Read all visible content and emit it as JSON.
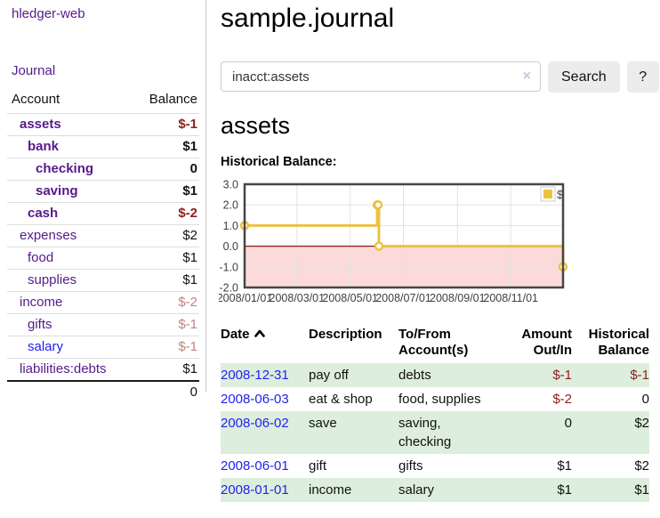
{
  "sidebar": {
    "app_title": "hledger-web",
    "nav": {
      "journal": "Journal"
    },
    "accounts": {
      "headers": {
        "account": "Account",
        "balance": "Balance"
      },
      "rows": [
        {
          "name": "assets",
          "depth": 0,
          "balance": "$-1",
          "in_account": true,
          "balance_style": "neg-strong",
          "link_style": "purple"
        },
        {
          "name": "bank",
          "depth": 1,
          "balance": "$1",
          "in_account": true,
          "balance_style": "",
          "link_style": "purple"
        },
        {
          "name": "checking",
          "depth": 2,
          "balance": "0",
          "in_account": true,
          "balance_style": "",
          "link_style": "purple"
        },
        {
          "name": "saving",
          "depth": 2,
          "balance": "$1",
          "in_account": true,
          "balance_style": "",
          "link_style": "purple"
        },
        {
          "name": "cash",
          "depth": 1,
          "balance": "$-2",
          "in_account": true,
          "balance_style": "neg-strong",
          "link_style": "purple"
        },
        {
          "name": "expenses",
          "depth": 0,
          "balance": "$2",
          "in_account": false,
          "balance_style": "",
          "link_style": "purple"
        },
        {
          "name": "food",
          "depth": 1,
          "balance": "$1",
          "in_account": false,
          "balance_style": "",
          "link_style": "purple"
        },
        {
          "name": "supplies",
          "depth": 1,
          "balance": "$1",
          "in_account": false,
          "balance_style": "",
          "link_style": "purple"
        },
        {
          "name": "income",
          "depth": 0,
          "balance": "$-2",
          "in_account": false,
          "balance_style": "neg-soft",
          "link_style": "purple"
        },
        {
          "name": "gifts",
          "depth": 1,
          "balance": "$-1",
          "in_account": false,
          "balance_style": "neg-soft",
          "link_style": "purple"
        },
        {
          "name": "salary",
          "depth": 1,
          "balance": "$-1",
          "in_account": false,
          "balance_style": "neg-soft",
          "link_style": "blue"
        },
        {
          "name": "liabilities:debts",
          "depth": 0,
          "balance": "$1",
          "in_account": false,
          "balance_style": "",
          "link_style": "purple"
        }
      ],
      "total": "0"
    }
  },
  "header": {
    "title": "sample.journal"
  },
  "search": {
    "value": "inacct:assets",
    "clear_icon": "×",
    "search_button": "Search",
    "help_button": "?"
  },
  "account_page": {
    "heading": "assets"
  },
  "chart_data": {
    "type": "line",
    "style": "step-after-with-markers",
    "title": "Historical Balance:",
    "xlabel": "",
    "ylabel": "",
    "xlim": [
      "2008-01-01",
      "2008-12-31"
    ],
    "ylim": [
      -2,
      3
    ],
    "x_ticks": [
      "2008/01/01",
      "2008/03/01",
      "2008/05/01",
      "2008/07/01",
      "2008/09/01",
      "2008/11/01"
    ],
    "y_ticks": [
      "3.0",
      "2.0",
      "1.0",
      "0.0",
      "-1.0",
      "-2.0"
    ],
    "grid": true,
    "legend_position": "top-right",
    "negative_region_fill": "#fcdada",
    "zero_line_color": "#8b1a1a",
    "series": [
      {
        "name": "$",
        "color": "#edc240",
        "points": [
          [
            "2008-01-01",
            1
          ],
          [
            "2008-06-01",
            2
          ],
          [
            "2008-06-02",
            2
          ],
          [
            "2008-06-03",
            0
          ],
          [
            "2008-12-31",
            -1
          ]
        ]
      }
    ]
  },
  "register": {
    "headers": {
      "date": "Date",
      "description": "Description",
      "accounts": "To/From Account(s)",
      "amount": "Amount Out/In",
      "balance": "Historical Balance"
    },
    "sort_icon": "caret-up",
    "sort_order": "ascending",
    "rows": [
      {
        "date": "2008-12-31",
        "description": "pay off",
        "accounts": "debts",
        "amount": "$-1",
        "amount_negative": true,
        "balance": "$-1",
        "balance_negative": true
      },
      {
        "date": "2008-06-03",
        "description": "eat & shop",
        "accounts": "food, supplies",
        "amount": "$-2",
        "amount_negative": true,
        "balance": "0",
        "balance_negative": false
      },
      {
        "date": "2008-06-02",
        "description": "save",
        "accounts": "saving, checking",
        "amount": "0",
        "amount_negative": false,
        "balance": "$2",
        "balance_negative": false
      },
      {
        "date": "2008-06-01",
        "description": "gift",
        "accounts": "gifts",
        "amount": "$1",
        "amount_negative": false,
        "balance": "$2",
        "balance_negative": false
      },
      {
        "date": "2008-01-01",
        "description": "income",
        "accounts": "salary",
        "amount": "$1",
        "amount_negative": false,
        "balance": "$1",
        "balance_negative": false
      }
    ]
  },
  "colors": {
    "link_purple": "#551a8b",
    "link_blue": "#2222ee",
    "negative_strong": "#8f1d1d",
    "negative_soft": "#c08383",
    "row_stripe_green": "#ddeedd",
    "chart_line_gold": "#edc240",
    "button_gray": "#ececec"
  }
}
